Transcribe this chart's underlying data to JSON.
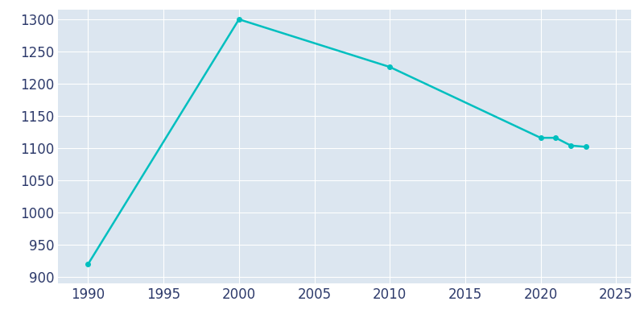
{
  "years": [
    1990,
    2000,
    2010,
    2020,
    2021,
    2022,
    2023
  ],
  "population": [
    920,
    1300,
    1226,
    1116,
    1116,
    1104,
    1102
  ],
  "line_color": "#00BFBF",
  "marker": "o",
  "marker_size": 4,
  "line_width": 1.8,
  "fig_bg_color": "#ffffff",
  "plot_bg_color": "#DCE6F0",
  "xlim": [
    1988,
    2026
  ],
  "ylim": [
    890,
    1315
  ],
  "xticks": [
    1990,
    1995,
    2000,
    2005,
    2010,
    2015,
    2020,
    2025
  ],
  "yticks": [
    900,
    950,
    1000,
    1050,
    1100,
    1150,
    1200,
    1250,
    1300
  ],
  "tick_color": "#2d3a6b",
  "tick_fontsize": 12,
  "grid_color": "#ffffff",
  "grid_alpha": 1.0,
  "grid_linewidth": 0.8
}
